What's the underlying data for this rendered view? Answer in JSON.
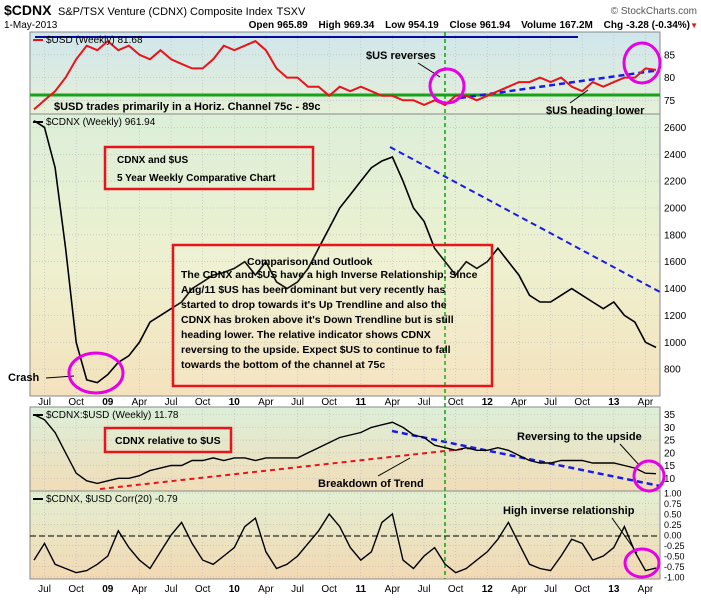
{
  "header": {
    "symbol": "$CDNX",
    "name": "S&P/TSX Venture (CDNX) Composite Index",
    "exchange": "TSXV",
    "copyright": "© StockCharts.com",
    "date": "1-May-2013",
    "open_label": "Open",
    "open": "965.89",
    "high_label": "High",
    "high": "969.34",
    "low_label": "Low",
    "low": "954.19",
    "close_label": "Close",
    "close": "961.94",
    "volume_label": "Volume",
    "volume": "167.2M",
    "chg_label": "Chg",
    "chg": "-3.28 (-0.34%)",
    "chg_marker": "▼"
  },
  "colors": {
    "usd_line": "#e8141c",
    "cdnx_line": "#000000",
    "channel_top": "#0a0a99",
    "channel_bottom": "#17a317",
    "trend_blue": "#1a1ae6",
    "trend_red": "#e8141c",
    "vertical_marker": "#14a014",
    "annotation_box": "#e8141c",
    "highlight_circle": "#e600e6"
  },
  "annotations": {
    "usd_reverses": "$US reverses",
    "usd_channel": "$USD trades primarily in a Horiz. Channel 75c - 89c",
    "usd_heading_lower": "$US heading lower",
    "box1_line1": "CDNX and $US",
    "box1_line2": "5 Year Weekly Comparative Chart",
    "box2_title": "Comparison and Outlook",
    "box2_lines": [
      "The CDNX and $US have a high Inverse Relationship. Since",
      "Aug/11 $US has been dominant but very recently has",
      "started to drop towards it's Up Trendline and also the",
      "CDNX has broken above it's Down Trendline but is  still",
      "heading lower. The relative indicator shows CDNX",
      "reversing to the upside. Expect $US to continue to fall",
      "towards the bottom of the channel at 75c"
    ],
    "crash": "Crash",
    "relative_box": "CDNX relative to $US",
    "breakdown": "Breakdown of Trend",
    "reversing_up": "Reversing to the upside",
    "high_inverse": "High inverse relationship"
  },
  "chart_data": [
    {
      "panel": "usd",
      "type": "line",
      "legend": "$USD (Weekly) 81.68",
      "ylim": [
        72,
        90
      ],
      "yticks": [
        "75",
        "80",
        "85"
      ],
      "x": [
        "2008-06",
        "2008-07",
        "2008-08",
        "2008-09",
        "2008-10",
        "2008-11",
        "2008-12",
        "2009-01",
        "2009-02",
        "2009-03",
        "2009-04",
        "2009-05",
        "2009-06",
        "2009-07",
        "2009-08",
        "2009-09",
        "2009-10",
        "2009-11",
        "2009-12",
        "2010-01",
        "2010-02",
        "2010-03",
        "2010-04",
        "2010-05",
        "2010-06",
        "2010-07",
        "2010-08",
        "2010-09",
        "2010-10",
        "2010-11",
        "2010-12",
        "2011-01",
        "2011-02",
        "2011-03",
        "2011-04",
        "2011-05",
        "2011-06",
        "2011-07",
        "2011-08",
        "2011-09",
        "2011-10",
        "2011-11",
        "2011-12",
        "2012-01",
        "2012-02",
        "2012-03",
        "2012-04",
        "2012-05",
        "2012-06",
        "2012-07",
        "2012-08",
        "2012-09",
        "2012-10",
        "2012-11",
        "2012-12",
        "2013-01",
        "2013-02",
        "2013-03",
        "2013-04",
        "2013-05"
      ],
      "values": [
        73,
        75,
        77,
        80,
        84,
        87,
        86,
        88,
        86,
        87,
        85,
        84,
        86,
        84,
        83,
        82,
        82,
        84,
        87,
        86,
        87,
        88,
        86,
        82,
        80,
        80,
        78,
        78,
        76,
        78,
        77,
        78,
        77,
        76,
        76,
        75,
        75,
        74,
        75,
        74,
        76,
        76,
        75,
        76,
        77,
        78,
        79,
        79,
        80,
        79,
        80,
        78,
        77,
        79,
        78,
        79,
        80,
        80,
        82,
        81.68
      ]
    },
    {
      "panel": "cdnx",
      "type": "line",
      "legend": "$CDNX (Weekly) 961.94",
      "ylim": [
        600,
        2700
      ],
      "yticks": [
        "800",
        "1000",
        "1200",
        "1400",
        "1600",
        "1800",
        "2000",
        "2200",
        "2400",
        "2600"
      ],
      "x": [
        "2008-06",
        "2008-07",
        "2008-08",
        "2008-09",
        "2008-10",
        "2008-11",
        "2008-12",
        "2009-01",
        "2009-02",
        "2009-03",
        "2009-04",
        "2009-05",
        "2009-06",
        "2009-07",
        "2009-08",
        "2009-09",
        "2009-10",
        "2009-11",
        "2009-12",
        "2010-01",
        "2010-02",
        "2010-03",
        "2010-04",
        "2010-05",
        "2010-06",
        "2010-07",
        "2010-08",
        "2010-09",
        "2010-10",
        "2010-11",
        "2010-12",
        "2011-01",
        "2011-02",
        "2011-03",
        "2011-04",
        "2011-05",
        "2011-06",
        "2011-07",
        "2011-08",
        "2011-09",
        "2011-10",
        "2011-11",
        "2011-12",
        "2012-01",
        "2012-02",
        "2012-03",
        "2012-04",
        "2012-05",
        "2012-06",
        "2012-07",
        "2012-08",
        "2012-09",
        "2012-10",
        "2012-11",
        "2012-12",
        "2013-01",
        "2013-02",
        "2013-03",
        "2013-04",
        "2013-05"
      ],
      "values": [
        2650,
        2600,
        2300,
        1700,
        1000,
        720,
        700,
        760,
        850,
        900,
        1000,
        1150,
        1200,
        1250,
        1300,
        1400,
        1450,
        1500,
        1520,
        1550,
        1600,
        1500,
        1600,
        1450,
        1400,
        1450,
        1550,
        1700,
        1850,
        2000,
        2100,
        2200,
        2300,
        2350,
        2380,
        2200,
        2000,
        1900,
        1700,
        1600,
        1500,
        1600,
        1550,
        1600,
        1700,
        1600,
        1500,
        1350,
        1300,
        1300,
        1350,
        1400,
        1350,
        1300,
        1250,
        1300,
        1200,
        1150,
        1000,
        961.94
      ]
    },
    {
      "panel": "ratio",
      "type": "line",
      "legend": "$CDNX:$USD (Weekly) 11.78",
      "ylim": [
        5,
        38
      ],
      "yticks": [
        "10",
        "15",
        "20",
        "25",
        "30",
        "35"
      ],
      "x": [
        "2008-06",
        "2008-07",
        "2008-08",
        "2008-09",
        "2008-10",
        "2008-11",
        "2008-12",
        "2009-01",
        "2009-02",
        "2009-03",
        "2009-04",
        "2009-05",
        "2009-06",
        "2009-07",
        "2009-08",
        "2009-09",
        "2009-10",
        "2009-11",
        "2009-12",
        "2010-01",
        "2010-02",
        "2010-03",
        "2010-04",
        "2010-05",
        "2010-06",
        "2010-07",
        "2010-08",
        "2010-09",
        "2010-10",
        "2010-11",
        "2010-12",
        "2011-01",
        "2011-02",
        "2011-03",
        "2011-04",
        "2011-05",
        "2011-06",
        "2011-07",
        "2011-08",
        "2011-09",
        "2011-10",
        "2011-11",
        "2011-12",
        "2012-01",
        "2012-02",
        "2012-03",
        "2012-04",
        "2012-05",
        "2012-06",
        "2012-07",
        "2012-08",
        "2012-09",
        "2012-10",
        "2012-11",
        "2012-12",
        "2013-01",
        "2013-02",
        "2013-03",
        "2013-04",
        "2013-05"
      ],
      "values": [
        35,
        33,
        28,
        20,
        12,
        9,
        8,
        9,
        10,
        10,
        11,
        13,
        14,
        15,
        15,
        17,
        17,
        18,
        17,
        18,
        18,
        17,
        18,
        18,
        18,
        18,
        20,
        22,
        24,
        26,
        27,
        28,
        30,
        31,
        32,
        30,
        27,
        26,
        23,
        22,
        21,
        22,
        21,
        21,
        22,
        21,
        19,
        17,
        16,
        16,
        17,
        17,
        17,
        16,
        16,
        16,
        15,
        14,
        12,
        11.78
      ]
    },
    {
      "panel": "correlation",
      "type": "line",
      "legend": "$CDNX, $USD Corr(20) -0.79",
      "ylim": [
        -1.05,
        1.05
      ],
      "yticks": [
        "-1.00",
        "-0.75",
        "-0.50",
        "-0.25",
        "0.00",
        "0.25",
        "0.50",
        "0.75",
        "1.00"
      ],
      "x": [
        "2008-06",
        "2008-07",
        "2008-08",
        "2008-09",
        "2008-10",
        "2008-11",
        "2008-12",
        "2009-01",
        "2009-02",
        "2009-03",
        "2009-04",
        "2009-05",
        "2009-06",
        "2009-07",
        "2009-08",
        "2009-09",
        "2009-10",
        "2009-11",
        "2009-12",
        "2010-01",
        "2010-02",
        "2010-03",
        "2010-04",
        "2010-05",
        "2010-06",
        "2010-07",
        "2010-08",
        "2010-09",
        "2010-10",
        "2010-11",
        "2010-12",
        "2011-01",
        "2011-02",
        "2011-03",
        "2011-04",
        "2011-05",
        "2011-06",
        "2011-07",
        "2011-08",
        "2011-09",
        "2011-10",
        "2011-11",
        "2011-12",
        "2012-01",
        "2012-02",
        "2012-03",
        "2012-04",
        "2012-05",
        "2012-06",
        "2012-07",
        "2012-08",
        "2012-09",
        "2012-10",
        "2012-11",
        "2012-12",
        "2013-01",
        "2013-02",
        "2013-03",
        "2013-04",
        "2013-05"
      ],
      "values": [
        -0.6,
        -0.2,
        -0.7,
        -0.8,
        -0.9,
        -0.85,
        -0.7,
        -0.5,
        0.1,
        -0.3,
        -0.6,
        -0.8,
        -0.4,
        0.0,
        0.3,
        -0.2,
        -0.6,
        -0.7,
        -0.5,
        -0.3,
        0.2,
        0.4,
        -0.4,
        -0.8,
        -0.7,
        -0.5,
        -0.2,
        0.1,
        0.5,
        0.2,
        -0.3,
        -0.6,
        -0.4,
        0.3,
        0.5,
        -0.6,
        -0.8,
        -0.5,
        -0.3,
        -0.7,
        -0.9,
        -0.8,
        -0.6,
        -0.4,
        -0.1,
        0.3,
        -0.2,
        -0.7,
        -0.8,
        -0.85,
        -0.5,
        -0.1,
        -0.2,
        -0.6,
        -0.5,
        -0.3,
        0.2,
        -0.4,
        -0.85,
        -0.79
      ]
    }
  ],
  "x_axis": {
    "labels": [
      {
        "text": "Jul",
        "x": "2008-07",
        "bold": false
      },
      {
        "text": "Oct",
        "x": "2008-10",
        "bold": false
      },
      {
        "text": "09",
        "x": "2009-01",
        "bold": true
      },
      {
        "text": "Apr",
        "x": "2009-04",
        "bold": false
      },
      {
        "text": "Jul",
        "x": "2009-07",
        "bold": false
      },
      {
        "text": "Oct",
        "x": "2009-10",
        "bold": false
      },
      {
        "text": "10",
        "x": "2010-01",
        "bold": true
      },
      {
        "text": "Apr",
        "x": "2010-04",
        "bold": false
      },
      {
        "text": "Jul",
        "x": "2010-07",
        "bold": false
      },
      {
        "text": "Oct",
        "x": "2010-10",
        "bold": false
      },
      {
        "text": "11",
        "x": "2011-01",
        "bold": true
      },
      {
        "text": "Apr",
        "x": "2011-04",
        "bold": false
      },
      {
        "text": "Jul",
        "x": "2011-07",
        "bold": false
      },
      {
        "text": "Oct",
        "x": "2011-10",
        "bold": false
      },
      {
        "text": "12",
        "x": "2012-01",
        "bold": true
      },
      {
        "text": "Apr",
        "x": "2012-04",
        "bold": false
      },
      {
        "text": "Jul",
        "x": "2012-07",
        "bold": false
      },
      {
        "text": "Oct",
        "x": "2012-10",
        "bold": false
      },
      {
        "text": "13",
        "x": "2013-01",
        "bold": true
      },
      {
        "text": "Apr",
        "x": "2013-04",
        "bold": false
      }
    ]
  }
}
